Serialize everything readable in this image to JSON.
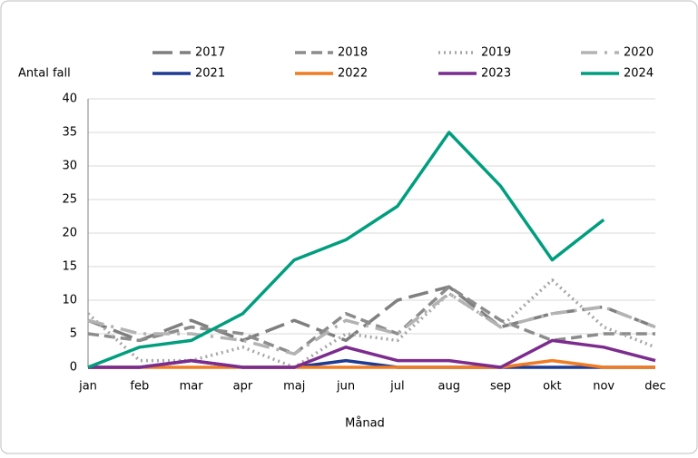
{
  "chart_data": {
    "type": "line",
    "ylabel": "Antal fall",
    "xlabel": "Månad",
    "categories": [
      "jan",
      "feb",
      "mar",
      "apr",
      "maj",
      "jun",
      "jul",
      "aug",
      "sep",
      "okt",
      "nov",
      "dec"
    ],
    "series": [
      {
        "name": "2017",
        "color": "#7f7f7f",
        "dash": "long-dash",
        "values": [
          7,
          4,
          7,
          4,
          7,
          4,
          10,
          12,
          6,
          8,
          9,
          6
        ]
      },
      {
        "name": "2018",
        "color": "#8c8c8c",
        "dash": "dash",
        "values": [
          5,
          4,
          6,
          5,
          2,
          8,
          5,
          12,
          7,
          4,
          5,
          5
        ]
      },
      {
        "name": "2019",
        "color": "#a6a6a6",
        "dash": "dot",
        "values": [
          8,
          1,
          1,
          3,
          0,
          5,
          4,
          11,
          6,
          13,
          6,
          3
        ]
      },
      {
        "name": "2020",
        "color": "#b3b3b3",
        "dash": "dash-dot",
        "values": [
          7,
          5,
          5,
          4,
          2,
          7,
          5,
          11,
          6,
          8,
          9,
          6
        ]
      },
      {
        "name": "2021",
        "color": "#1f3a93",
        "dash": "solid",
        "values": [
          0,
          0,
          1,
          0,
          0,
          1,
          0,
          0,
          0,
          0,
          0,
          0
        ]
      },
      {
        "name": "2022",
        "color": "#f07c24",
        "dash": "solid",
        "values": [
          0,
          0,
          0,
          0,
          0,
          0,
          0,
          0,
          0,
          1,
          0,
          0
        ]
      },
      {
        "name": "2023",
        "color": "#7b2c8e",
        "dash": "solid",
        "values": [
          0,
          0,
          1,
          0,
          0,
          3,
          1,
          1,
          0,
          4,
          3,
          1
        ]
      },
      {
        "name": "2024",
        "color": "#009e7e",
        "dash": "solid",
        "values": [
          0,
          3,
          4,
          8,
          16,
          19,
          24,
          35,
          27,
          16,
          22,
          null
        ]
      }
    ],
    "ylim": [
      0,
      40
    ],
    "yticks": [
      0,
      5,
      10,
      15,
      20,
      25,
      30,
      35,
      40
    ],
    "grid": true
  }
}
